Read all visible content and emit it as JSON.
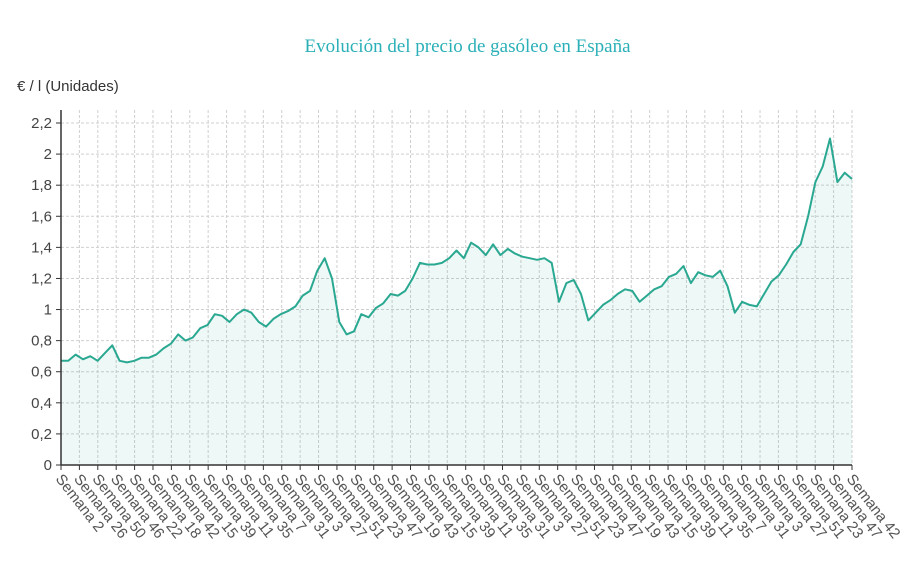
{
  "chart_data": {
    "type": "area",
    "title": "Evolución del precio de gasóleo en España",
    "ylabel": "€ / l (Unidades)",
    "xlabel": "",
    "ylim": [
      0,
      2.2
    ],
    "yticks": [
      "0",
      "0,2",
      "0,4",
      "0,6",
      "0,8",
      "1",
      "1,2",
      "1,4",
      "1,6",
      "1,8",
      "2",
      "2,2"
    ],
    "xticks": [
      "Semana 2",
      "Semana 26",
      "Semana 50",
      "Semana 46",
      "Semana 22",
      "Semana 18",
      "Semana 42",
      "Semana 15",
      "Semana 39",
      "Semana 11",
      "Semana 35",
      "Semana 7",
      "Semana 31",
      "Semana 3",
      "Semana 27",
      "Semana 51",
      "Semana 23",
      "Semana 47",
      "Semana 19",
      "Semana 43",
      "Semana 15",
      "Semana 39",
      "Semana 11",
      "Semana 35",
      "Semana 31",
      "Semana 3",
      "Semana 27",
      "Semana 51",
      "Semana 23",
      "Semana 47",
      "Semana 19",
      "Semana 43",
      "Semana 15",
      "Semana 39",
      "Semana 11",
      "Semana 35",
      "Semana 7",
      "Semana 31",
      "Semana 3",
      "Semana 27",
      "Semana 51",
      "Semana 23",
      "Semana 47",
      "Semana 42"
    ],
    "grid": true,
    "series": [
      {
        "name": "Gasóleo",
        "color": "#2aa891",
        "values": [
          0.67,
          0.67,
          0.71,
          0.68,
          0.7,
          0.67,
          0.72,
          0.77,
          0.67,
          0.66,
          0.67,
          0.69,
          0.69,
          0.71,
          0.75,
          0.78,
          0.84,
          0.8,
          0.82,
          0.88,
          0.9,
          0.97,
          0.96,
          0.92,
          0.97,
          1.0,
          0.98,
          0.92,
          0.89,
          0.94,
          0.97,
          0.99,
          1.02,
          1.09,
          1.12,
          1.25,
          1.33,
          1.2,
          0.92,
          0.84,
          0.86,
          0.97,
          0.95,
          1.01,
          1.04,
          1.1,
          1.09,
          1.12,
          1.2,
          1.3,
          1.29,
          1.29,
          1.3,
          1.33,
          1.38,
          1.33,
          1.43,
          1.4,
          1.35,
          1.42,
          1.35,
          1.39,
          1.36,
          1.34,
          1.33,
          1.32,
          1.33,
          1.3,
          1.05,
          1.17,
          1.19,
          1.1,
          0.93,
          0.98,
          1.03,
          1.06,
          1.1,
          1.13,
          1.12,
          1.05,
          1.09,
          1.13,
          1.15,
          1.21,
          1.23,
          1.28,
          1.17,
          1.24,
          1.22,
          1.21,
          1.25,
          1.15,
          0.98,
          1.05,
          1.03,
          1.02,
          1.1,
          1.18,
          1.22,
          1.29,
          1.37,
          1.42,
          1.6,
          1.82,
          1.92,
          2.1,
          1.82,
          1.88,
          1.84
        ]
      }
    ]
  }
}
